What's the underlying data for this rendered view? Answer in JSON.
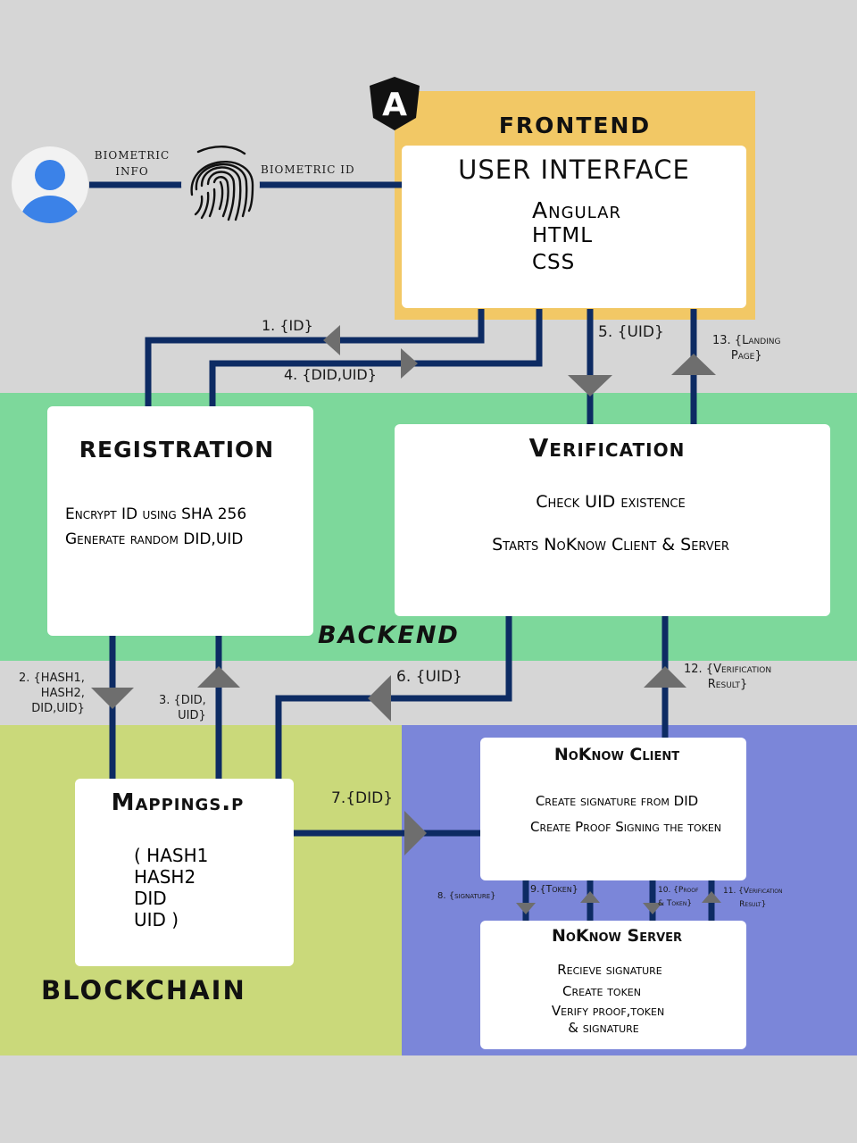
{
  "sections": {
    "frontend": "FRONTEND",
    "backend": "BACKEND",
    "blockchain": "BLOCKCHAIN"
  },
  "user": {
    "biometric_info": "BIOMETRIC\nINFO",
    "biometric_id": "BIOMETRIC ID",
    "avatar_icon": "user-avatar-icon",
    "fingerprint_icon": "fingerprint-icon",
    "angular_icon": "angular-logo-icon",
    "angular_letter": "A"
  },
  "ui_box": {
    "title": "USER INTERFACE",
    "items": [
      "Angular",
      "HTML",
      "CSS"
    ]
  },
  "registration": {
    "title": "REGISTRATION",
    "items": [
      "Encrypt ID using SHA 256",
      "Generate random DID,UID"
    ]
  },
  "verification": {
    "title": "Verification",
    "items": [
      "Check UID existence",
      "Starts NoKnow Client & Server"
    ]
  },
  "mappings": {
    "title": "Mappings.p",
    "items": [
      "( HASH1",
      "HASH2",
      "DID",
      "UID )"
    ]
  },
  "client": {
    "title": "NoKnow Client",
    "items": [
      "Create signature from DID",
      "Create Proof Signing the token"
    ]
  },
  "server": {
    "title": "NoKnow Server",
    "items": [
      "Recieve signature",
      "Create token",
      "Verify proof,token",
      "& signature"
    ]
  },
  "arrows": {
    "a1": "1. {ID}",
    "a2": "2. {HASH1,\nHASH2,\nDID,UID}",
    "a3": "3. {DID,\nUID}",
    "a4": "4. {DID,UID}",
    "a5": "5. {UID}",
    "a6": "6. {UID}",
    "a7": "7.{DID}",
    "a8": "8. {signature}",
    "a9": "9.{Token}",
    "a10": "10. {Proof\n& Token}",
    "a11": "11. {Verification\nResult}",
    "a12": "12. {Verification\nResult}",
    "a13": "13. {Landing\nPage}"
  },
  "colors": {
    "background": "#d6d6d6",
    "frontend": "#f2c865",
    "backend": "#7dd89b",
    "blockchain": "#cad97a",
    "noknow": "#7b86d9",
    "connector": "#0d2b63",
    "arrowhead": "#6e6e6e"
  }
}
